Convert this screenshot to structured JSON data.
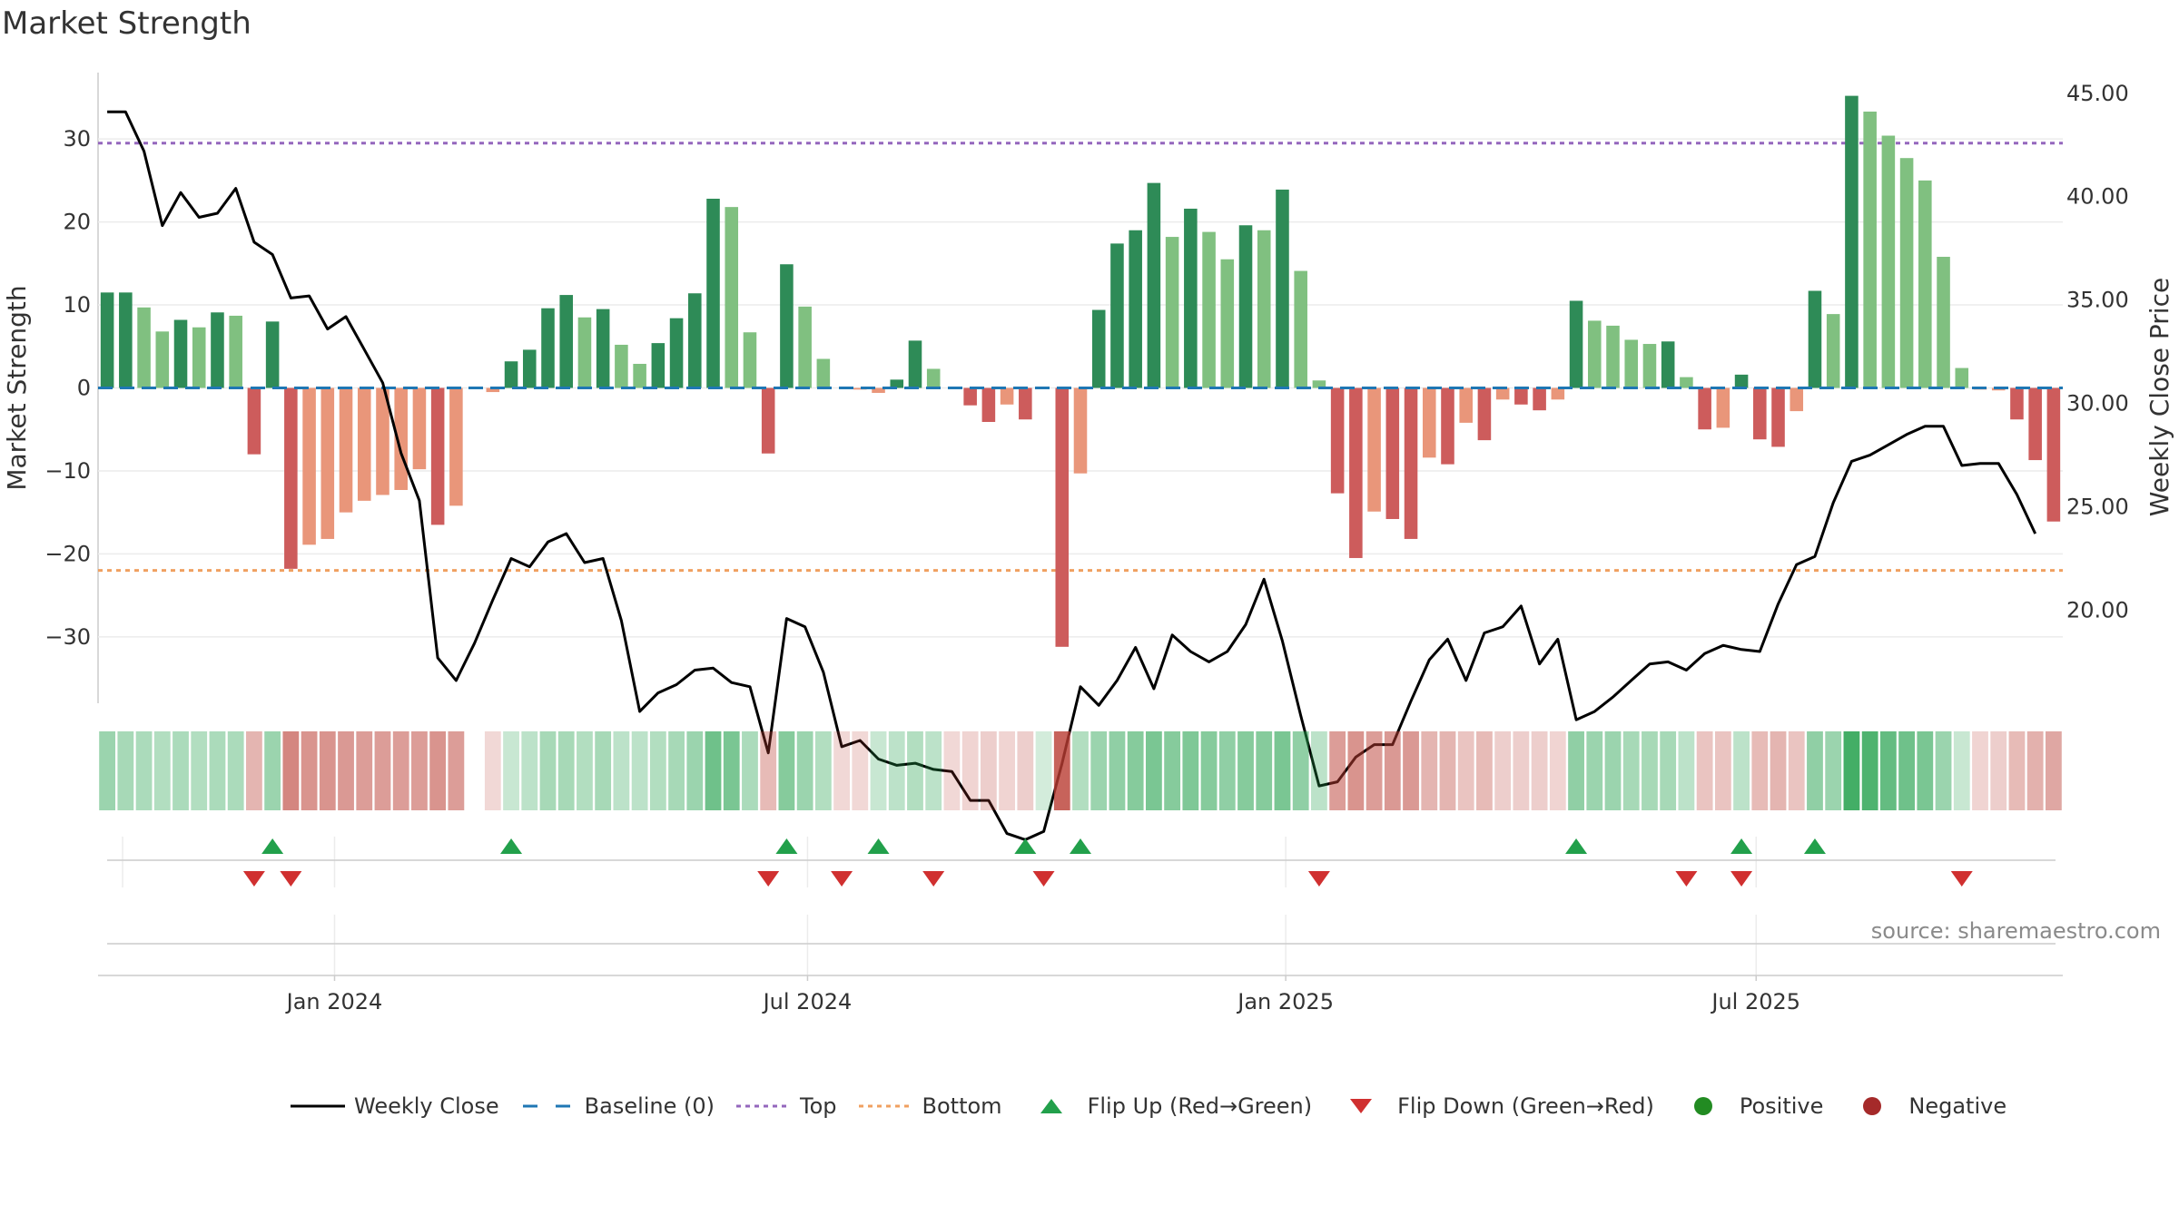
{
  "title": "Market Strength",
  "source": "source: sharemaestro.com",
  "colors": {
    "strong_green": "#2e8b57",
    "light_green": "#80c080",
    "strong_red": "#cd5c5c",
    "light_red": "#e9967a",
    "close_line": "#000000",
    "baseline": "#1f77b4",
    "top": "#9467bd",
    "bottom": "#f0a060",
    "flip_up": "#22a04b",
    "flip_down": "#d03030",
    "positive": "#228b22",
    "negative": "#a52a2a"
  },
  "chart_data": {
    "type": "bar",
    "title": "Market Strength",
    "ylabel": "Market Strength",
    "y2label": "Weekly Close Price",
    "ylim": [
      -38,
      38
    ],
    "y2lim": [
      15.5,
      46
    ],
    "yticks": [
      "30",
      "20",
      "10",
      "0",
      "−10",
      "−20",
      "−30"
    ],
    "y2ticks": [
      "45.00",
      "40.00",
      "35.00",
      "30.00",
      "25.00",
      "20.00"
    ],
    "x_start": "2023-10-02",
    "x_end": "2025-10-27",
    "xticks": [
      {
        "date": "2024-01-01",
        "label": "Jan 2024"
      },
      {
        "date": "2024-07-01",
        "label": "Jul 2024"
      },
      {
        "date": "2025-01-01",
        "label": "Jan 2025"
      },
      {
        "date": "2025-07-01",
        "label": "Jul 2025"
      }
    ],
    "top_line": 29.5,
    "bottom_line": -22,
    "baseline": 0,
    "strength": [
      11.5,
      11.5,
      9.7,
      6.8,
      8.2,
      7.3,
      9.1,
      8.7,
      -8,
      8,
      -21.8,
      -18.9,
      -18.2,
      -15,
      -13.6,
      -12.9,
      -12.3,
      -9.8,
      -16.5,
      -14.2,
      0,
      -0.5,
      3.2,
      4.6,
      9.6,
      11.2,
      8.5,
      9.5,
      5.2,
      2.9,
      5.4,
      8.4,
      11.4,
      22.8,
      21.8,
      6.7,
      -7.9,
      14.9,
      9.8,
      3.5,
      0,
      -0.2,
      -0.6,
      1,
      5.7,
      2.3,
      0,
      -2.1,
      -4.1,
      -2,
      -3.8,
      0,
      -31.2,
      -10.3,
      9.4,
      17.4,
      19,
      24.7,
      18.2,
      21.6,
      18.8,
      15.5,
      19.6,
      19,
      23.9,
      14.1,
      0.9,
      -12.7,
      -20.5,
      -14.9,
      -15.8,
      -18.2,
      -8.4,
      -9.2,
      -4.2,
      -6.3,
      -1.4,
      -2,
      -2.7,
      -1.4,
      10.5,
      8.1,
      7.5,
      5.8,
      5.3,
      5.6,
      1.3,
      -5,
      -4.8,
      1.6,
      -6.2,
      -7.1,
      -2.8,
      11.7,
      8.9,
      35.2,
      33.3,
      30.4,
      27.7,
      25,
      15.8,
      2.4,
      -0.2,
      -0.3,
      -3.8,
      -8.7,
      -16.1
    ],
    "strength_shade": [
      "S",
      "S",
      "L",
      "L",
      "S",
      "L",
      "S",
      "L",
      "S",
      "S",
      "S",
      "L",
      "L",
      "L",
      "L",
      "L",
      "L",
      "L",
      "S",
      "L",
      "L",
      "L",
      "S",
      "S",
      "S",
      "S",
      "L",
      "S",
      "L",
      "L",
      "S",
      "S",
      "S",
      "S",
      "L",
      "L",
      "S",
      "S",
      "L",
      "L",
      "S",
      "L",
      "L",
      "S",
      "S",
      "L",
      "S",
      "S",
      "S",
      "L",
      "S",
      "S",
      "S",
      "L",
      "S",
      "S",
      "S",
      "S",
      "L",
      "S",
      "L",
      "L",
      "S",
      "L",
      "S",
      "L",
      "L",
      "S",
      "S",
      "L",
      "S",
      "S",
      "L",
      "S",
      "L",
      "S",
      "L",
      "S",
      "S",
      "L",
      "S",
      "L",
      "L",
      "L",
      "L",
      "S",
      "L",
      "S",
      "L",
      "S",
      "S",
      "S",
      "L",
      "S",
      "L",
      "S",
      "L",
      "L",
      "L",
      "L",
      "L",
      "L",
      "L",
      "L",
      "S",
      "S",
      "S"
    ],
    "close": [
      44.1,
      44.1,
      42.2,
      38.6,
      40.2,
      39,
      39.2,
      40.4,
      37.8,
      37.2,
      35.1,
      35.2,
      33.6,
      34.2,
      32.6,
      31,
      27.6,
      25.3,
      17.7,
      16.6,
      18.4,
      20.5,
      22.5,
      22.1,
      23.3,
      23.7,
      22.3,
      22.5,
      19.5,
      15.1,
      16,
      16.4,
      17.1,
      17.2,
      16.5,
      16.3,
      13.1,
      19.6,
      19.2,
      17,
      13.4,
      13.7,
      12.8,
      12.5,
      12.6,
      12.3,
      12.2,
      10.8,
      10.8,
      9.2,
      8.9,
      9.3,
      12.6,
      16.3,
      15.4,
      16.6,
      18.2,
      16.2,
      18.8,
      18,
      17.5,
      18,
      19.3,
      21.5,
      18.5,
      14.9,
      11.5,
      11.7,
      12.9,
      13.5,
      13.5,
      15.6,
      17.6,
      18.6,
      16.6,
      18.9,
      19.2,
      20.2,
      17.4,
      18.6,
      14.7,
      15.1,
      15.8,
      16.6,
      17.4,
      17.5,
      17.1,
      17.9,
      18.3,
      18.1,
      18,
      20.3,
      22.2,
      22.6,
      25.2,
      27.2,
      27.5,
      28,
      28.5,
      28.9,
      28.9,
      27,
      27.1,
      27.1,
      25.6,
      23.7
    ],
    "strip": [
      {
        "c": "G",
        "a": 0.45
      },
      {
        "c": "G",
        "a": 0.4
      },
      {
        "c": "G",
        "a": 0.38
      },
      {
        "c": "G",
        "a": 0.35
      },
      {
        "c": "G",
        "a": 0.38
      },
      {
        "c": "G",
        "a": 0.35
      },
      {
        "c": "G",
        "a": 0.38
      },
      {
        "c": "G",
        "a": 0.38
      },
      {
        "c": "R",
        "a": 0.38
      },
      {
        "c": "G",
        "a": 0.45
      },
      {
        "c": "R",
        "a": 0.62
      },
      {
        "c": "R",
        "a": 0.55
      },
      {
        "c": "R",
        "a": 0.55
      },
      {
        "c": "R",
        "a": 0.52
      },
      {
        "c": "R",
        "a": 0.5
      },
      {
        "c": "R",
        "a": 0.5
      },
      {
        "c": "R",
        "a": 0.5
      },
      {
        "c": "R",
        "a": 0.5
      },
      {
        "c": "R",
        "a": 0.55
      },
      {
        "c": "R",
        "a": 0.5
      },
      {
        "c": "N",
        "a": 0
      },
      {
        "c": "R",
        "a": 0.2
      },
      {
        "c": "G",
        "a": 0.25
      },
      {
        "c": "G",
        "a": 0.3
      },
      {
        "c": "G",
        "a": 0.4
      },
      {
        "c": "G",
        "a": 0.4
      },
      {
        "c": "G",
        "a": 0.35
      },
      {
        "c": "G",
        "a": 0.4
      },
      {
        "c": "G",
        "a": 0.3
      },
      {
        "c": "G",
        "a": 0.3
      },
      {
        "c": "G",
        "a": 0.35
      },
      {
        "c": "G",
        "a": 0.4
      },
      {
        "c": "G",
        "a": 0.45
      },
      {
        "c": "G",
        "a": 0.65
      },
      {
        "c": "G",
        "a": 0.6
      },
      {
        "c": "G",
        "a": 0.38
      },
      {
        "c": "R",
        "a": 0.35
      },
      {
        "c": "G",
        "a": 0.55
      },
      {
        "c": "G",
        "a": 0.45
      },
      {
        "c": "G",
        "a": 0.35
      },
      {
        "c": "R",
        "a": 0.2
      },
      {
        "c": "R",
        "a": 0.2
      },
      {
        "c": "G",
        "a": 0.25
      },
      {
        "c": "G",
        "a": 0.3
      },
      {
        "c": "G",
        "a": 0.35
      },
      {
        "c": "G",
        "a": 0.3
      },
      {
        "c": "R",
        "a": 0.2
      },
      {
        "c": "R",
        "a": 0.22
      },
      {
        "c": "R",
        "a": 0.25
      },
      {
        "c": "R",
        "a": 0.22
      },
      {
        "c": "R",
        "a": 0.25
      },
      {
        "c": "G",
        "a": 0.2
      },
      {
        "c": "R",
        "a": 0.8
      },
      {
        "c": "G",
        "a": 0.35
      },
      {
        "c": "G",
        "a": 0.45
      },
      {
        "c": "G",
        "a": 0.5
      },
      {
        "c": "G",
        "a": 0.55
      },
      {
        "c": "G",
        "a": 0.6
      },
      {
        "c": "G",
        "a": 0.55
      },
      {
        "c": "G",
        "a": 0.58
      },
      {
        "c": "G",
        "a": 0.55
      },
      {
        "c": "G",
        "a": 0.5
      },
      {
        "c": "G",
        "a": 0.55
      },
      {
        "c": "G",
        "a": 0.55
      },
      {
        "c": "G",
        "a": 0.6
      },
      {
        "c": "G",
        "a": 0.5
      },
      {
        "c": "G",
        "a": 0.3
      },
      {
        "c": "R",
        "a": 0.5
      },
      {
        "c": "R",
        "a": 0.55
      },
      {
        "c": "R",
        "a": 0.5
      },
      {
        "c": "R",
        "a": 0.52
      },
      {
        "c": "R",
        "a": 0.52
      },
      {
        "c": "R",
        "a": 0.38
      },
      {
        "c": "R",
        "a": 0.38
      },
      {
        "c": "R",
        "a": 0.3
      },
      {
        "c": "R",
        "a": 0.35
      },
      {
        "c": "R",
        "a": 0.25
      },
      {
        "c": "R",
        "a": 0.25
      },
      {
        "c": "R",
        "a": 0.25
      },
      {
        "c": "R",
        "a": 0.22
      },
      {
        "c": "G",
        "a": 0.5
      },
      {
        "c": "G",
        "a": 0.45
      },
      {
        "c": "G",
        "a": 0.45
      },
      {
        "c": "G",
        "a": 0.4
      },
      {
        "c": "G",
        "a": 0.4
      },
      {
        "c": "G",
        "a": 0.4
      },
      {
        "c": "G",
        "a": 0.3
      },
      {
        "c": "R",
        "a": 0.3
      },
      {
        "c": "R",
        "a": 0.3
      },
      {
        "c": "G",
        "a": 0.3
      },
      {
        "c": "R",
        "a": 0.35
      },
      {
        "c": "R",
        "a": 0.38
      },
      {
        "c": "R",
        "a": 0.3
      },
      {
        "c": "G",
        "a": 0.5
      },
      {
        "c": "G",
        "a": 0.45
      },
      {
        "c": "G",
        "a": 0.85
      },
      {
        "c": "G",
        "a": 0.8
      },
      {
        "c": "G",
        "a": 0.7
      },
      {
        "c": "G",
        "a": 0.65
      },
      {
        "c": "G",
        "a": 0.6
      },
      {
        "c": "G",
        "a": 0.45
      },
      {
        "c": "G",
        "a": 0.25
      },
      {
        "c": "R",
        "a": 0.22
      },
      {
        "c": "R",
        "a": 0.25
      },
      {
        "c": "R",
        "a": 0.35
      },
      {
        "c": "R",
        "a": 0.4
      },
      {
        "c": "R",
        "a": 0.45
      }
    ],
    "flip_up": [
      9,
      22,
      37,
      42,
      50,
      53,
      80,
      89,
      93
    ],
    "flip_down": [
      8,
      10,
      36,
      40,
      45,
      51,
      66,
      86,
      89,
      101
    ],
    "legend": [
      {
        "key": "close",
        "label": "Weekly Close"
      },
      {
        "key": "baseline",
        "label": "Baseline (0)"
      },
      {
        "key": "top",
        "label": "Top"
      },
      {
        "key": "bottom",
        "label": "Bottom"
      },
      {
        "key": "flip_up",
        "label": "Flip Up (Red→Green)"
      },
      {
        "key": "flip_down",
        "label": "Flip Down (Green→Red)"
      },
      {
        "key": "positive",
        "label": "Positive"
      },
      {
        "key": "negative",
        "label": "Negative"
      }
    ]
  }
}
